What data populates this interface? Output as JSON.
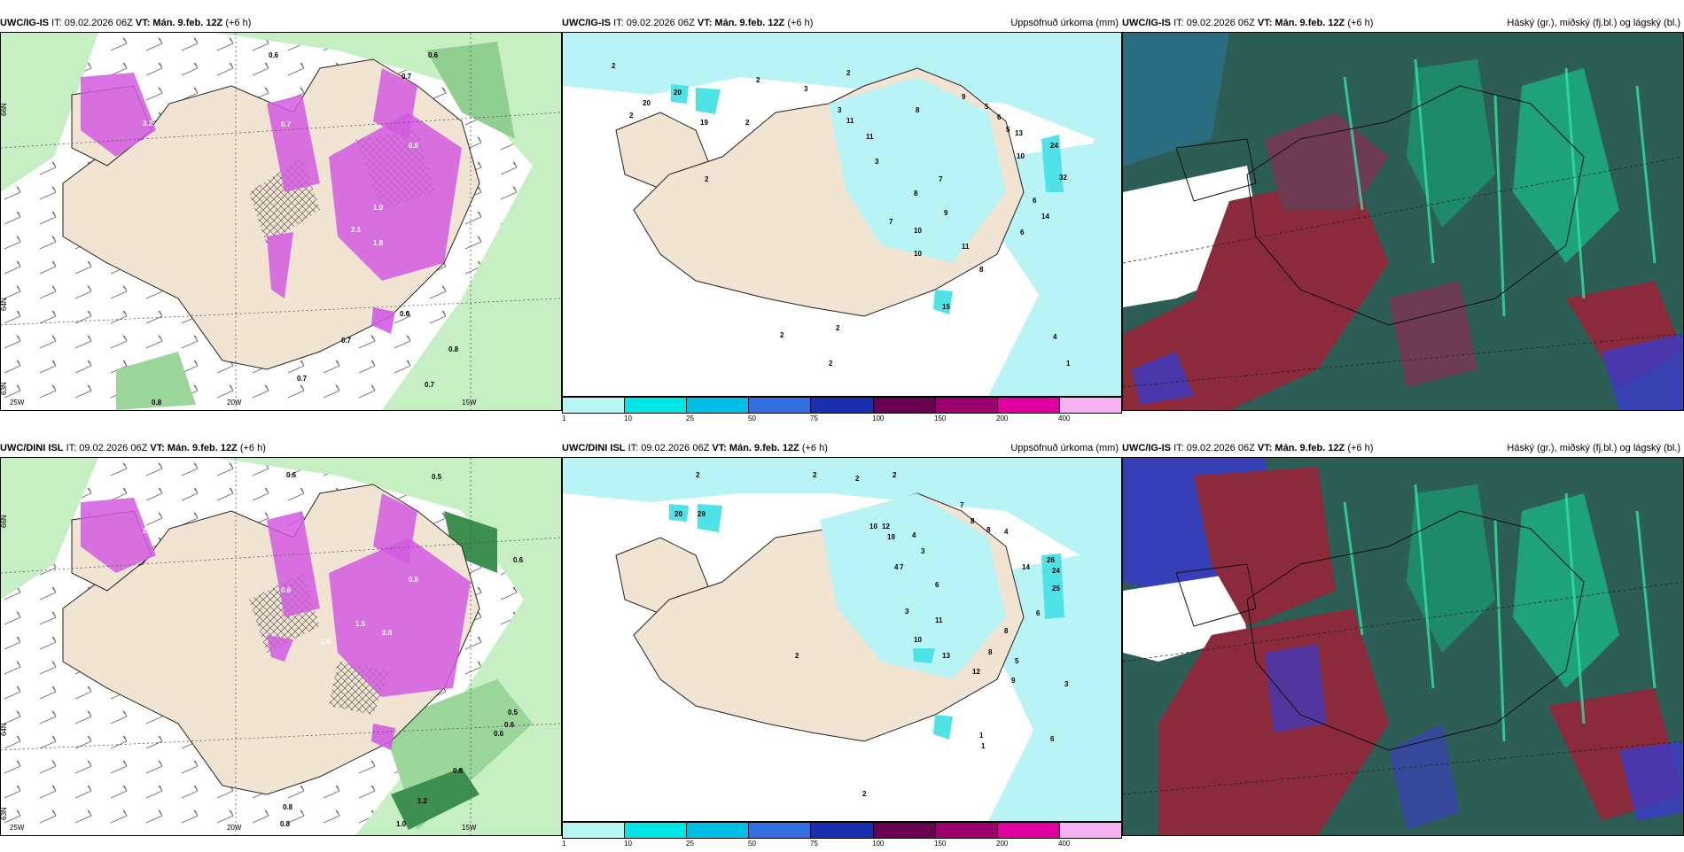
{
  "rows": [
    {
      "left_header": {
        "model": "UWC/IG-IS",
        "it": "IT: 09.02.2026 06Z",
        "vt_label": "VT:",
        "vt": "Mán. 9.feb. 12Z",
        "lead": "(+6 h)"
      },
      "mid_header": {
        "model": "UWC/IG-IS",
        "it": "IT: 09.02.2026 06Z",
        "vt_label": "VT:",
        "vt": "Mán. 9.feb. 12Z",
        "lead": "(+6 h)",
        "title": "Uppsöfnuð úrkoma (mm)"
      },
      "right_header": {
        "model": "UWC/IG-IS",
        "it": "IT: 09.02.2026 06Z",
        "vt_label": "VT:",
        "vt": "Mán. 9.feb. 12Z",
        "lead": "(+6 h)",
        "title": "Háský (gr.), miðský (fj.bl.) og lágský (bl.)"
      },
      "lat_labels": [
        "66N",
        "64N",
        "63N"
      ],
      "lon_labels": [
        "25W",
        "20W",
        "15W"
      ],
      "left_values": [
        "0.6",
        "0.6",
        "0.7",
        "3.2",
        "0.7",
        "0.7",
        "0.8",
        "0.7",
        "0.7",
        "0.5",
        "1.0",
        "2.1",
        "1.8",
        "0.6",
        "0.8"
      ],
      "mid_values": [
        "2",
        "2",
        "3",
        "2",
        "19",
        "20",
        "20",
        "2",
        "2",
        "11",
        "11",
        "3",
        "3",
        "9",
        "5",
        "6",
        "5",
        "8",
        "8",
        "7",
        "13",
        "10",
        "10",
        "24",
        "32",
        "14",
        "6",
        "9",
        "7",
        "6",
        "2",
        "2",
        "2",
        "4",
        "1",
        "15",
        "10",
        "11",
        "2",
        "8"
      ]
    },
    {
      "left_header": {
        "model": "UWC/DINI ISL",
        "it": "IT: 09.02.2026 06Z",
        "vt_label": "VT:",
        "vt": "Mán. 9.feb. 12Z",
        "lead": "(+6 h)"
      },
      "mid_header": {
        "model": "UWC/DINI ISL",
        "it": "IT: 09.02.2026 06Z",
        "vt_label": "VT:",
        "vt": "Mán. 9.feb. 12Z",
        "lead": "(+6 h)",
        "title": "Uppsöfnuð úrkoma (mm)"
      },
      "right_header": {
        "model": "UWC/IG-IS",
        "it": "IT: 09.02.2026 06Z",
        "vt_label": "VT:",
        "vt": "Mán. 9.feb. 12Z",
        "lead": "(+6 h)",
        "title": "Háský (gr.), miðský (fj.bl.) og lágský (bl.)"
      },
      "lat_labels": [
        "66N",
        "64N",
        "63N"
      ],
      "lon_labels": [
        "25W",
        "20W",
        "15W"
      ],
      "left_values": [
        "0.6",
        "0.6",
        "2.6",
        "0.6",
        "0.5",
        "0.5",
        "1.5",
        "0.8",
        "0.8",
        "0.8",
        "1.0",
        "2.0",
        "1.4",
        "0.6",
        "0.5",
        "0.6",
        "1.2"
      ],
      "mid_values": [
        "2",
        "2",
        "2",
        "2",
        "20",
        "29",
        "10",
        "12",
        "19",
        "7",
        "8",
        "8",
        "4",
        "4",
        "3",
        "6",
        "26",
        "24",
        "25",
        "14",
        "6",
        "10",
        "11",
        "13",
        "12",
        "8",
        "9",
        "8",
        "7",
        "5",
        "2",
        "3",
        "4",
        "1",
        "1",
        "6",
        "3",
        "2"
      ]
    }
  ],
  "colorbar": {
    "ticks": [
      "1",
      "10",
      "25",
      "50",
      "75",
      "100",
      "150",
      "200",
      "400"
    ],
    "colors": [
      "#b9f6f6",
      "#00e6e6",
      "#00bfe6",
      "#2f6fe0",
      "#1a2fb0",
      "#6a0050",
      "#9c0070",
      "#e000a0",
      "#f6b2f0"
    ]
  },
  "palette": {
    "land": "#f2e4d2",
    "precip_light": "#b8f3f5",
    "precip_mid": "#4fe3e8",
    "wind_green": "#c7efc4",
    "snow_purple": "#d25be0",
    "cloud_high": "#8a2a3a",
    "cloud_mid": "#1ea27a",
    "cloud_low": "#3a3ac8"
  }
}
